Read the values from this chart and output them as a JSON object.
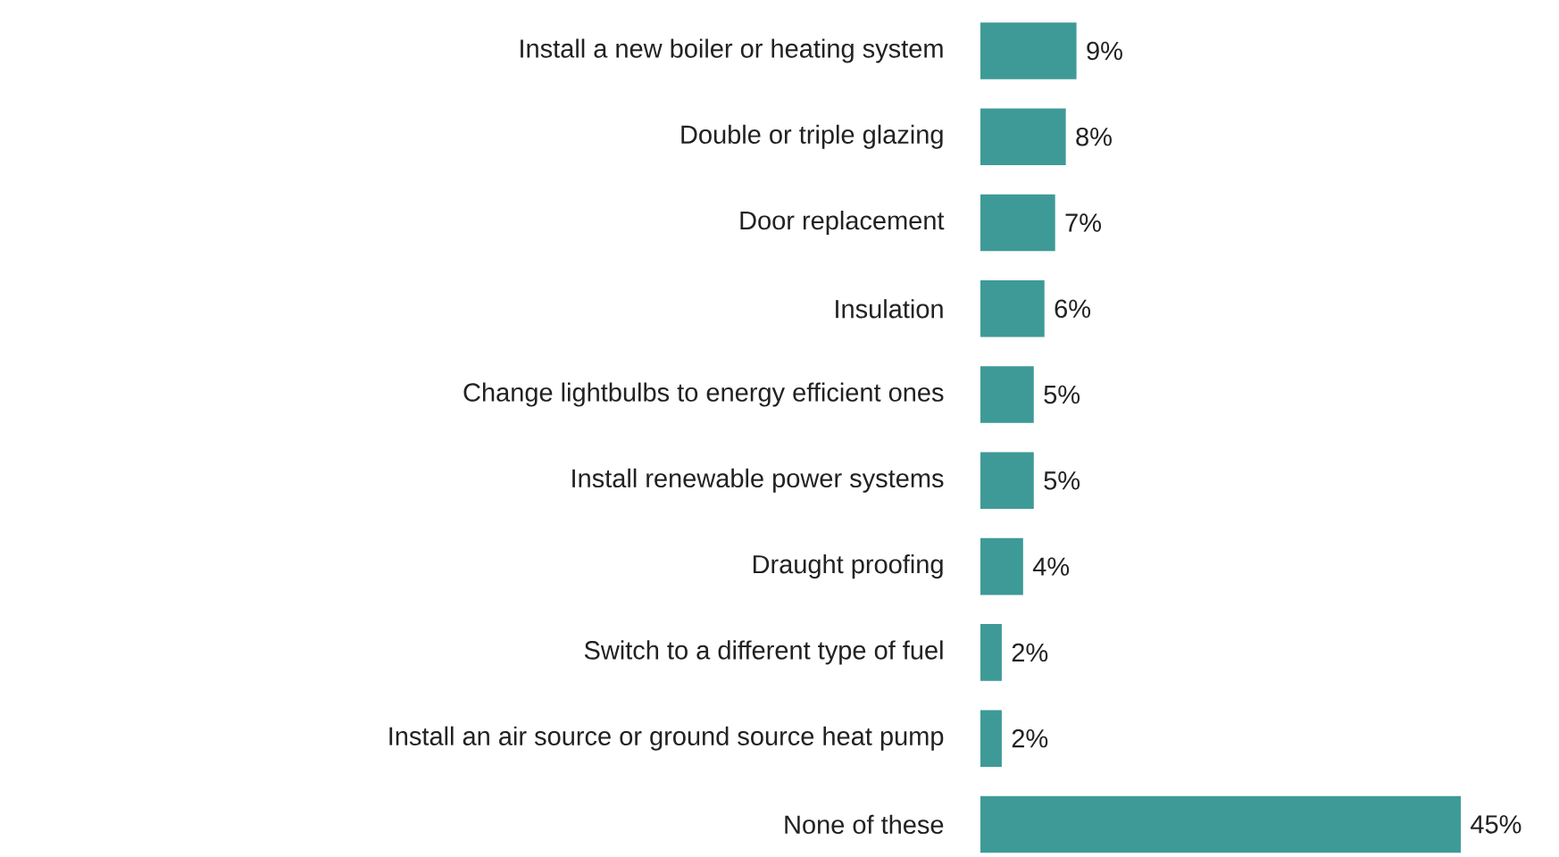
{
  "chart_data": {
    "type": "bar",
    "orientation": "horizontal",
    "color": "#3e9a97",
    "categories": [
      "Install a new boiler or heating system",
      "Double or triple glazing",
      "Door replacement",
      "Insulation",
      "Change lightbulbs to energy efficient ones",
      "Install renewable power systems",
      "Draught proofing",
      "Switch to a different type of fuel",
      "Install an air source or ground source heat pump",
      "None of these"
    ],
    "values": [
      9,
      8,
      7,
      6,
      5,
      5,
      4,
      2,
      2,
      45
    ],
    "value_labels": [
      "9%",
      "8%",
      "7%",
      "6%",
      "5%",
      "5%",
      "4%",
      "2%",
      "2%",
      "45%"
    ]
  }
}
